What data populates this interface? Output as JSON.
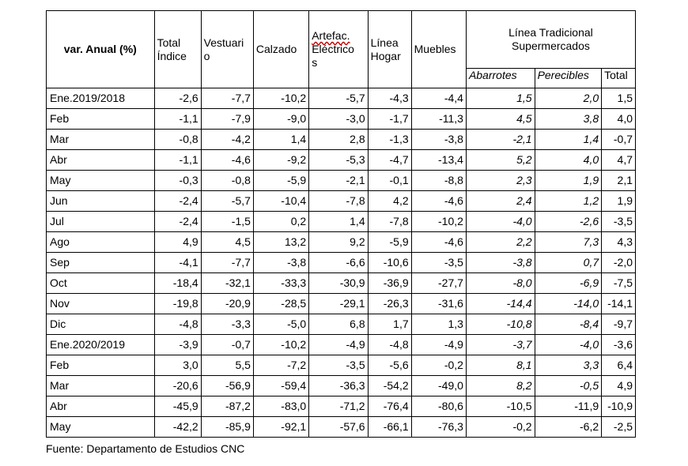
{
  "table": {
    "corner_label": "var. Anual (%)",
    "columns": {
      "total_indice": [
        "Total",
        "Índice"
      ],
      "vestuario": [
        "Vestuari",
        "o"
      ],
      "calzado": [
        "Calzado"
      ],
      "artefac_electricos": [
        "Artefac.",
        "Eléctrico",
        "s"
      ],
      "linea_hogar": [
        "Línea",
        "Hogar"
      ],
      "muebles": [
        "Muebles"
      ],
      "group": [
        "Línea Tradicional",
        "Supermercados"
      ],
      "abarrotes": "Abarrotes",
      "perecibles": "Perecibles",
      "total": "Total"
    },
    "rows": [
      [
        "Ene.2019/2018",
        "-2,6",
        "-7,7",
        "-10,2",
        "-5,7",
        "-4,3",
        "-4,4",
        "1,5",
        "2,0",
        "1,5"
      ],
      [
        "Feb",
        "-1,1",
        "-7,9",
        "-9,0",
        "-3,0",
        "-1,7",
        "-11,3",
        "4,5",
        "3,8",
        "4,0"
      ],
      [
        "Mar",
        "-0,8",
        "-4,2",
        "1,4",
        "2,8",
        "-1,3",
        "-3,8",
        "-2,1",
        "1,4",
        "-0,7"
      ],
      [
        "Abr",
        "-1,1",
        "-4,6",
        "-9,2",
        "-5,3",
        "-4,7",
        "-13,4",
        "5,2",
        "4,0",
        "4,7"
      ],
      [
        "May",
        "-0,3",
        "-0,8",
        "-5,9",
        "-2,1",
        "-0,1",
        "-8,8",
        "2,3",
        "1,9",
        "2,1"
      ],
      [
        "Jun",
        "-2,4",
        "-5,7",
        "-10,4",
        "-7,8",
        "4,2",
        "-4,6",
        "2,4",
        "1,2",
        "1,9"
      ],
      [
        "Jul",
        "-2,4",
        "-1,5",
        "0,2",
        "1,4",
        "-7,8",
        "-10,2",
        "-4,0",
        "-2,6",
        "-3,5"
      ],
      [
        "Ago",
        "4,9",
        "4,5",
        "13,2",
        "9,2",
        "-5,9",
        "-4,6",
        "2,2",
        "7,3",
        "4,3"
      ],
      [
        "Sep",
        "-4,1",
        "-7,7",
        "-3,8",
        "-6,6",
        "-10,6",
        "-3,5",
        "-3,8",
        "0,7",
        "-2,0"
      ],
      [
        "Oct",
        "-18,4",
        "-32,1",
        "-33,3",
        "-30,9",
        "-36,9",
        "-27,7",
        "-8,0",
        "-6,9",
        "-7,5"
      ],
      [
        "Nov",
        "-19,8",
        "-20,9",
        "-28,5",
        "-29,1",
        "-26,3",
        "-31,6",
        "-14,4",
        "-14,0",
        "-14,1"
      ],
      [
        "Dic",
        "-4,8",
        "-3,3",
        "-5,0",
        "6,8",
        "1,7",
        "1,3",
        "-10,8",
        "-8,4",
        "-9,7"
      ],
      [
        "Ene.2020/2019",
        "-3,9",
        "-0,7",
        "-10,2",
        "-4,9",
        "-4,8",
        "-4,9",
        "-3,7",
        "-4,0",
        "-3,6"
      ],
      [
        "Feb",
        "3,0",
        "5,5",
        "-7,2",
        "-3,5",
        "-5,6",
        "-0,2",
        "8,1",
        "3,3",
        "6,4"
      ],
      [
        "Mar",
        "-20,6",
        "-56,9",
        "-59,4",
        "-36,3",
        "-54,2",
        "-49,0",
        "8,2",
        "-0,5",
        "4,9"
      ],
      [
        "Abr",
        "-45,9",
        "-87,2",
        "-83,0",
        "-71,2",
        "-76,4",
        "-80,6",
        "-10,5",
        "-11,9",
        "-10,9"
      ],
      [
        "May",
        "-42,2",
        "-85,9",
        "-92,1",
        "-57,6",
        "-66,1",
        "-76,3",
        "-0,2",
        "-6,2",
        "-2,5"
      ]
    ],
    "italic_rows_count": 15
  },
  "source": "Fuente: Departamento de Estudios CNC"
}
